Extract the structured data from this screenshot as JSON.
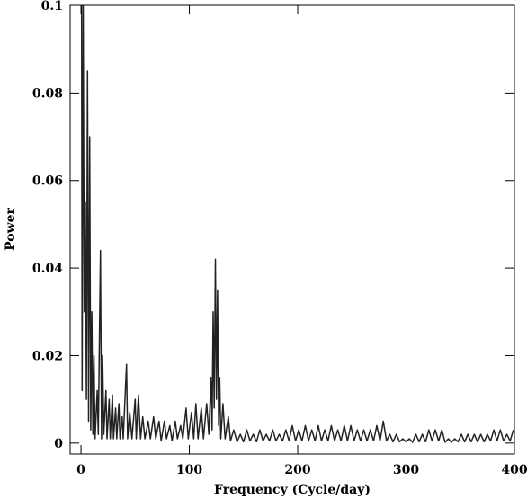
{
  "chart_data": {
    "type": "line",
    "xlabel": "Frequency (Cycle/day)",
    "ylabel": "Power",
    "xlim": [
      -10,
      400
    ],
    "ylim": [
      -0.0025,
      0.1
    ],
    "xticks": [
      0,
      100,
      200,
      300,
      400
    ],
    "yticks": [
      0,
      0.02,
      0.04,
      0.06,
      0.08,
      0.1
    ],
    "color": "#222222",
    "x": [
      0.5,
      1,
      2,
      3,
      4,
      5,
      6,
      7,
      8,
      9,
      10,
      11,
      12,
      13,
      15,
      16,
      18,
      19,
      20,
      21,
      23,
      24,
      26,
      27,
      29,
      30,
      32,
      33,
      35,
      36,
      38,
      39,
      42,
      43,
      45,
      47,
      50,
      51,
      53,
      55,
      57,
      59,
      62,
      64,
      67,
      69,
      72,
      74,
      77,
      79,
      82,
      84,
      87,
      89,
      92,
      94,
      97,
      99,
      102,
      104,
      106,
      108,
      111,
      113,
      116,
      118,
      120,
      121,
      122,
      123,
      124,
      125,
      126,
      127,
      128,
      129,
      131,
      133,
      136,
      138,
      141,
      144,
      147,
      150,
      153,
      156,
      159,
      162,
      165,
      168,
      171,
      174,
      177,
      180,
      183,
      186,
      189,
      192,
      195,
      198,
      201,
      204,
      207,
      210,
      213,
      216,
      219,
      222,
      225,
      228,
      231,
      234,
      237,
      240,
      243,
      246,
      249,
      252,
      255,
      258,
      261,
      264,
      267,
      270,
      273,
      276,
      279,
      282,
      285,
      288,
      291,
      294,
      297,
      300,
      303,
      306,
      309,
      312,
      315,
      318,
      321,
      324,
      327,
      330,
      333,
      336,
      339,
      342,
      345,
      348,
      351,
      354,
      357,
      360,
      363,
      366,
      369,
      372,
      375,
      378,
      381,
      384,
      387,
      390,
      393,
      396,
      399
    ],
    "values": [
      0.1,
      0.012,
      0.1,
      0.03,
      0.055,
      0.01,
      0.085,
      0.005,
      0.07,
      0.003,
      0.03,
      0.002,
      0.02,
      0.001,
      0.012,
      0.002,
      0.044,
      0.001,
      0.02,
      0.002,
      0.012,
      0.001,
      0.01,
      0.001,
      0.011,
      0.001,
      0.008,
      0.001,
      0.009,
      0.001,
      0.006,
      0.001,
      0.018,
      0.001,
      0.007,
      0.001,
      0.01,
      0.001,
      0.011,
      0.001,
      0.006,
      0.001,
      0.005,
      0.001,
      0.006,
      0.001,
      0.005,
      0.0005,
      0.005,
      0.001,
      0.004,
      0.0005,
      0.005,
      0.001,
      0.004,
      0.001,
      0.008,
      0.001,
      0.007,
      0.001,
      0.009,
      0.001,
      0.008,
      0.001,
      0.009,
      0.002,
      0.015,
      0.003,
      0.03,
      0.008,
      0.042,
      0.01,
      0.035,
      0.004,
      0.015,
      0.001,
      0.009,
      0.001,
      0.006,
      0.0005,
      0.003,
      0.0003,
      0.002,
      0.0003,
      0.003,
      0.0005,
      0.002,
      0.0003,
      0.003,
      0.0005,
      0.002,
      0.0005,
      0.003,
      0.0005,
      0.002,
      0.0005,
      0.003,
      0.0005,
      0.004,
      0.0005,
      0.003,
      0.0005,
      0.004,
      0.0005,
      0.003,
      0.0005,
      0.004,
      0.0005,
      0.003,
      0.0005,
      0.004,
      0.0005,
      0.003,
      0.0005,
      0.004,
      0.0005,
      0.004,
      0.0005,
      0.003,
      0.0005,
      0.003,
      0.0005,
      0.003,
      0.0005,
      0.004,
      0.0005,
      0.005,
      0.0005,
      0.002,
      0.0003,
      0.002,
      0.0003,
      0.001,
      0.0003,
      0.001,
      0.0002,
      0.002,
      0.0003,
      0.002,
      0.0003,
      0.003,
      0.0005,
      0.003,
      0.0005,
      0.003,
      0.0002,
      0.001,
      0.0002,
      0.001,
      0.0003,
      0.002,
      0.0003,
      0.002,
      0.0003,
      0.002,
      0.0003,
      0.002,
      0.0003,
      0.002,
      0.0005,
      0.003,
      0.0005,
      0.003,
      0.0005,
      0.002,
      0.0005,
      0.003
    ]
  }
}
